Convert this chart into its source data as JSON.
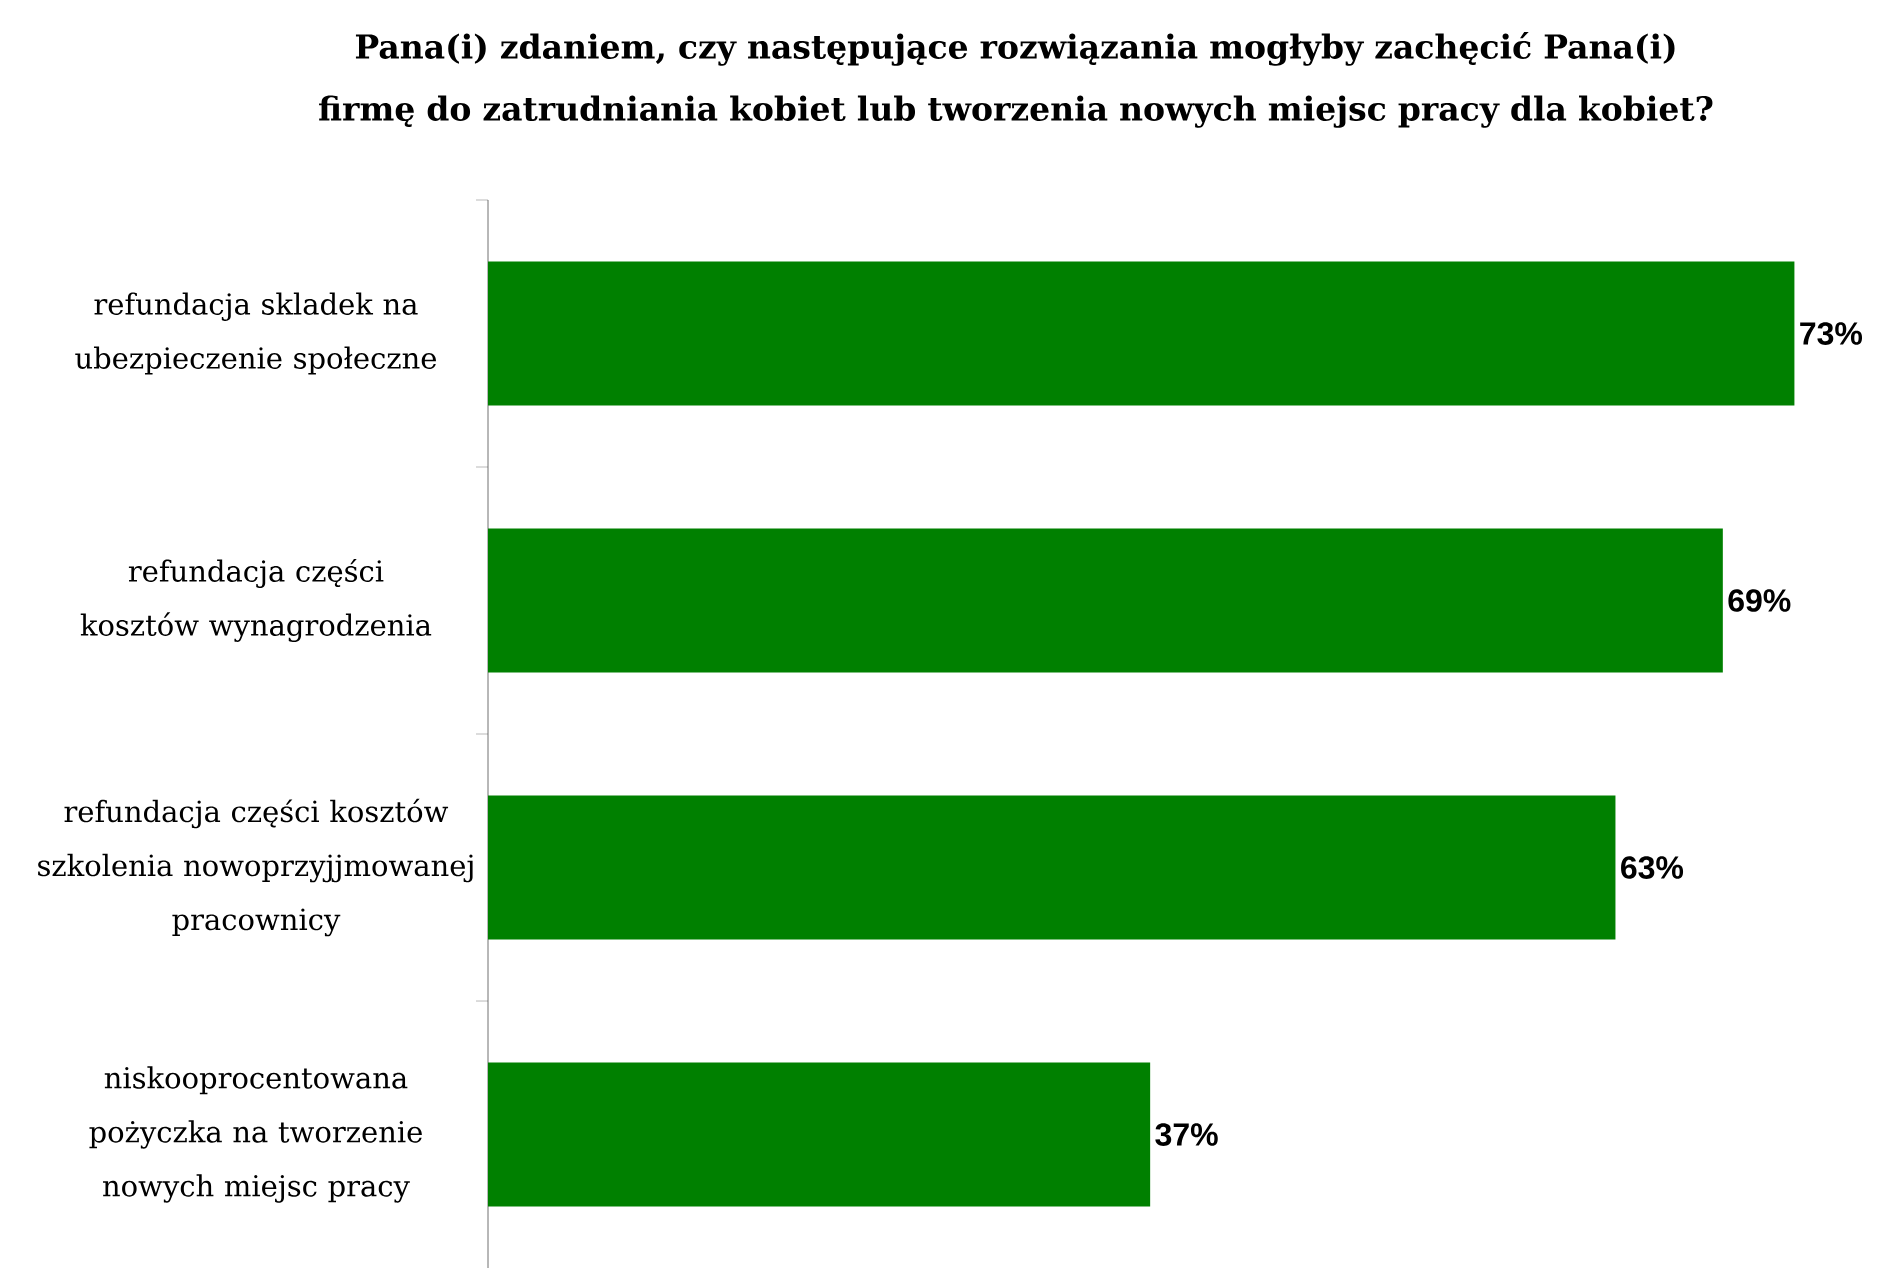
{
  "chart_data": {
    "type": "bar",
    "orientation": "horizontal",
    "title": "Pana(i) zdaniem, czy następujące rozwiązania mogłyby zachęcić Pana(i) firmę do zatrudniania kobiet lub tworzenia nowych miejsc pracy dla kobiet?",
    "categories": [
      "refundacja skladek na ubezpieczenie społeczne",
      "refundacja części kosztów wynagrodzenia",
      "refundacja części kosztów szkolenia nowoprzyjjmowanej pracownicy",
      "niskooprocentowana pożyczka na tworzenie nowych miejsc pracy"
    ],
    "values": [
      73,
      69,
      63,
      37
    ],
    "value_labels": [
      "73%",
      "69%",
      "63%",
      "37%"
    ],
    "color": "#008000"
  }
}
